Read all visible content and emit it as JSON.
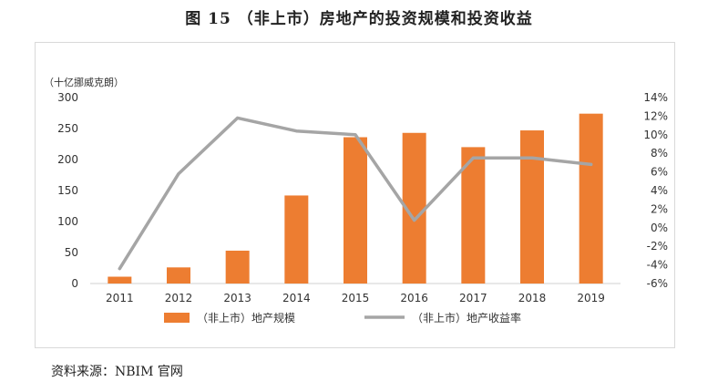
{
  "title": "图 15    （非上市）房地产的投资规模和投资收益",
  "source": "资料来源：NBIM 官网",
  "chart_data": {
    "type": "bar+line",
    "categories": [
      "2011",
      "2012",
      "2013",
      "2014",
      "2015",
      "2016",
      "2017",
      "2018",
      "2019"
    ],
    "y_unit": "（十亿挪威克朗）",
    "ylim_left": [
      0,
      300
    ],
    "left_ticks": [
      "0",
      "50",
      "100",
      "150",
      "200",
      "250",
      "300"
    ],
    "ylim_right": [
      -6,
      14
    ],
    "right_ticks": [
      "-6%",
      "-4%",
      "-2%",
      "0%",
      "2%",
      "4%",
      "6%",
      "8%",
      "10%",
      "12%",
      "14%"
    ],
    "series": [
      {
        "name": "（非上市）地产规模",
        "type": "bar",
        "axis": "left",
        "color": "#ED7D31",
        "values": [
          11,
          26,
          53,
          142,
          236,
          243,
          220,
          247,
          274
        ]
      },
      {
        "name": "（非上市）地产收益率",
        "type": "line",
        "axis": "right",
        "color": "#A5A5A5",
        "values": [
          -4.4,
          5.8,
          11.8,
          10.4,
          10.0,
          0.8,
          7.5,
          7.5,
          6.8
        ]
      }
    ],
    "grid": false,
    "legend_position": "bottom"
  }
}
